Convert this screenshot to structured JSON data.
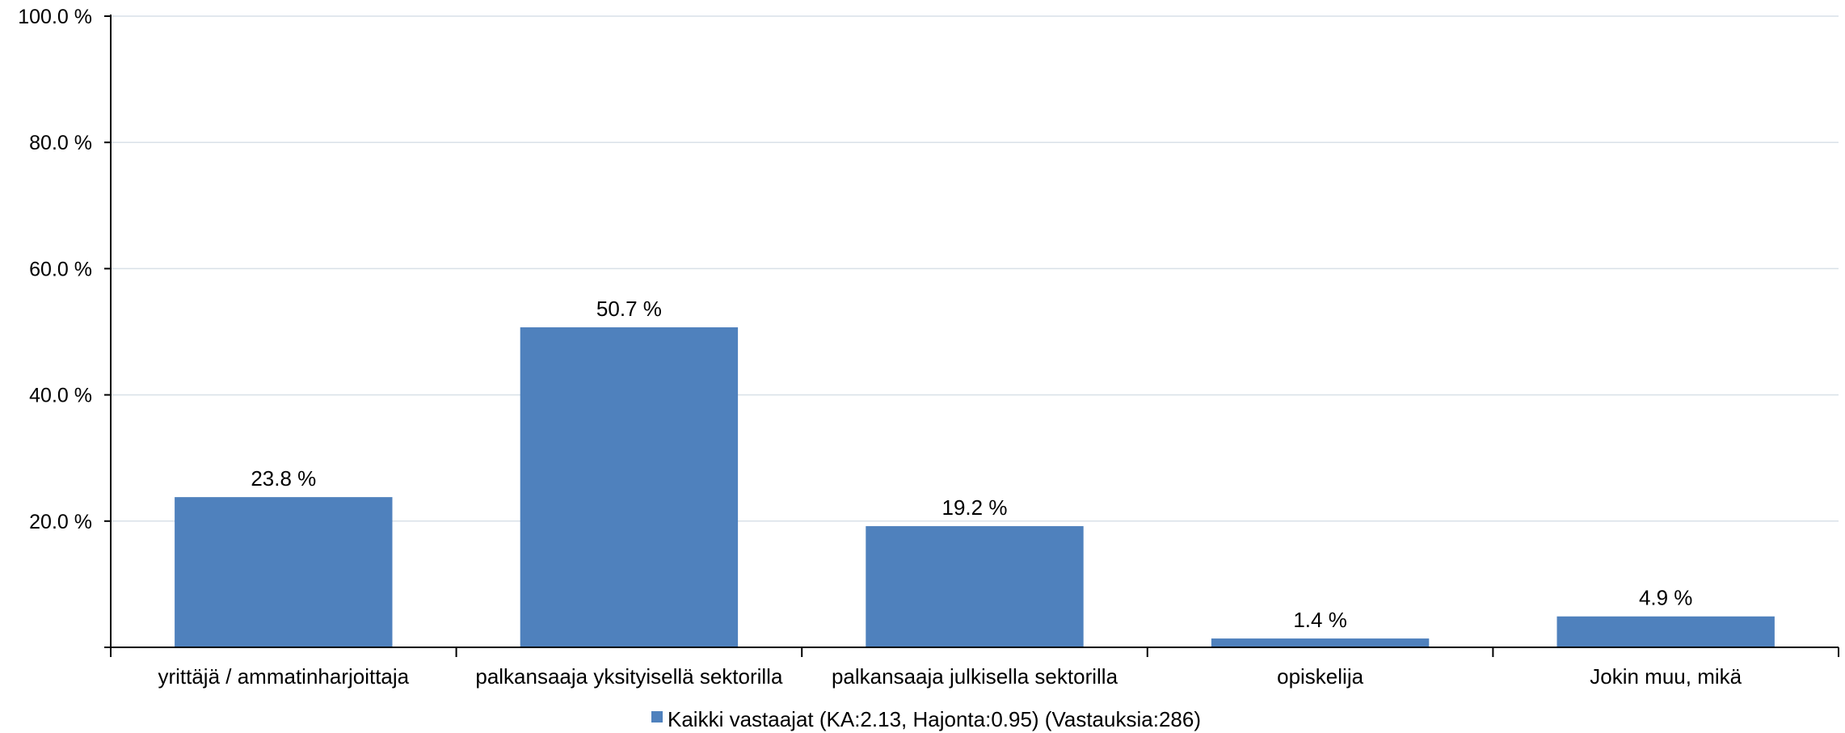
{
  "chart_data": {
    "type": "bar",
    "categories": [
      "yrittäjä / ammatinharjoittaja",
      "palkansaaja yksityisellä sektorilla",
      "palkansaaja julkisella sektorilla",
      "opiskelija",
      "Jokin muu, mikä"
    ],
    "series": [
      {
        "name": "Kaikki vastaajat (KA:2.13, Hajonta:0.95) (Vastauksia:286)",
        "values": [
          23.8,
          50.7,
          19.2,
          1.4,
          4.9
        ],
        "data_labels": [
          "23.8 %",
          "50.7 %",
          "19.2 %",
          "1.4 %",
          "4.9 %"
        ],
        "color": "#4f81bd"
      }
    ],
    "ylim": [
      0,
      100
    ],
    "yticks": [
      20,
      40,
      60,
      80,
      100
    ],
    "ytick_labels": [
      "20.0 %",
      "40.0 %",
      "60.0 %",
      "80.0 %",
      "100.0 %"
    ],
    "grid": true,
    "gridline_color": "#d9e1e8",
    "legend_position": "bottom-center"
  }
}
